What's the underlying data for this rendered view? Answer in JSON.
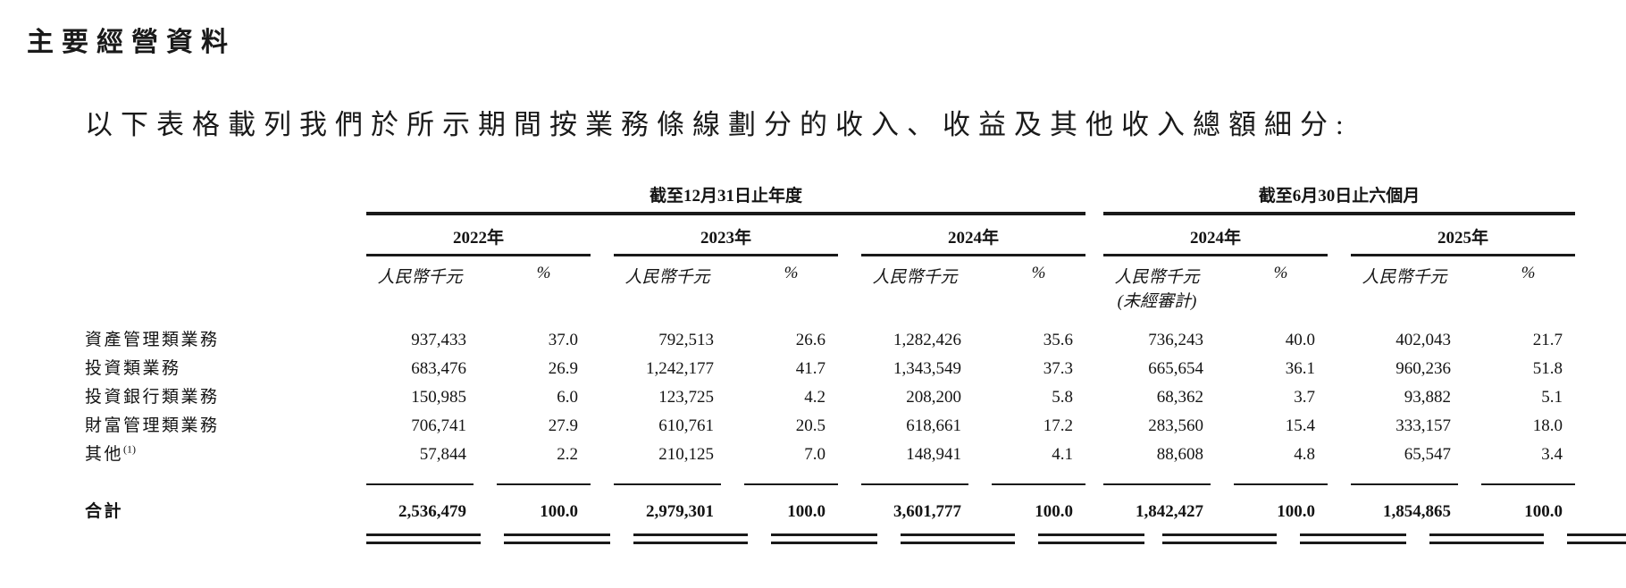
{
  "page": {
    "title": "主要經營資料",
    "intro": "以下表格載列我們於所示期間按業務條線劃分的收入、收益及其他收入總額細分:"
  },
  "table": {
    "group_headers": [
      {
        "label": "截至12月31日止年度"
      },
      {
        "label": "截至6月30日止六個月"
      }
    ],
    "year_headers": [
      "2022年",
      "2023年",
      "2024年",
      "2024年",
      "2025年"
    ],
    "unit_label": "人民幣千元",
    "pct_label": "%",
    "unaudited_note": "(未經審計)",
    "rows": [
      {
        "label": "資產管理類業務",
        "values": [
          "937,433",
          "37.0",
          "792,513",
          "26.6",
          "1,282,426",
          "35.6",
          "736,243",
          "40.0",
          "402,043",
          "21.7"
        ]
      },
      {
        "label": "投資類業務",
        "values": [
          "683,476",
          "26.9",
          "1,242,177",
          "41.7",
          "1,343,549",
          "37.3",
          "665,654",
          "36.1",
          "960,236",
          "51.8"
        ]
      },
      {
        "label": "投資銀行類業務",
        "values": [
          "150,985",
          "6.0",
          "123,725",
          "4.2",
          "208,200",
          "5.8",
          "68,362",
          "3.7",
          "93,882",
          "5.1"
        ]
      },
      {
        "label": "財富管理類業務",
        "values": [
          "706,741",
          "27.9",
          "610,761",
          "20.5",
          "618,661",
          "17.2",
          "283,560",
          "15.4",
          "333,157",
          "18.0"
        ]
      },
      {
        "label": "其他",
        "footnote": "(1)",
        "values": [
          "57,844",
          "2.2",
          "210,125",
          "7.0",
          "148,941",
          "4.1",
          "88,608",
          "4.8",
          "65,547",
          "3.4"
        ]
      }
    ],
    "total": {
      "label": "合計",
      "values": [
        "2,536,479",
        "100.0",
        "2,979,301",
        "100.0",
        "3,601,777",
        "100.0",
        "1,842,427",
        "100.0",
        "1,854,865",
        "100.0"
      ]
    }
  }
}
